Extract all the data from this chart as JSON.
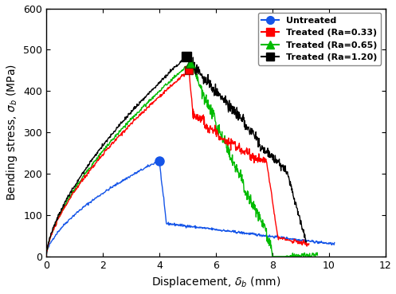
{
  "xlabel": "Displacement, δ_b (mm)",
  "ylabel": "Bending stress, σ_b (MPa)",
  "xlim": [
    0,
    12
  ],
  "ylim": [
    0,
    600
  ],
  "xticks": [
    0,
    2,
    4,
    6,
    8,
    10,
    12
  ],
  "yticks": [
    0,
    100,
    200,
    300,
    400,
    500,
    600
  ],
  "legend_labels": [
    "Untreated",
    "Treated (Ra=0.33)",
    "Treated (Ra=0.65)",
    "Treated (Ra=1.20)"
  ],
  "colors": [
    "#1555e8",
    "#ff0000",
    "#00bb00",
    "#000000"
  ],
  "peak_markers": {
    "untreated": [
      4.0,
      232
    ],
    "ra033": [
      5.05,
      450
    ],
    "ra065": [
      5.1,
      468
    ],
    "ra120": [
      4.95,
      483
    ]
  }
}
